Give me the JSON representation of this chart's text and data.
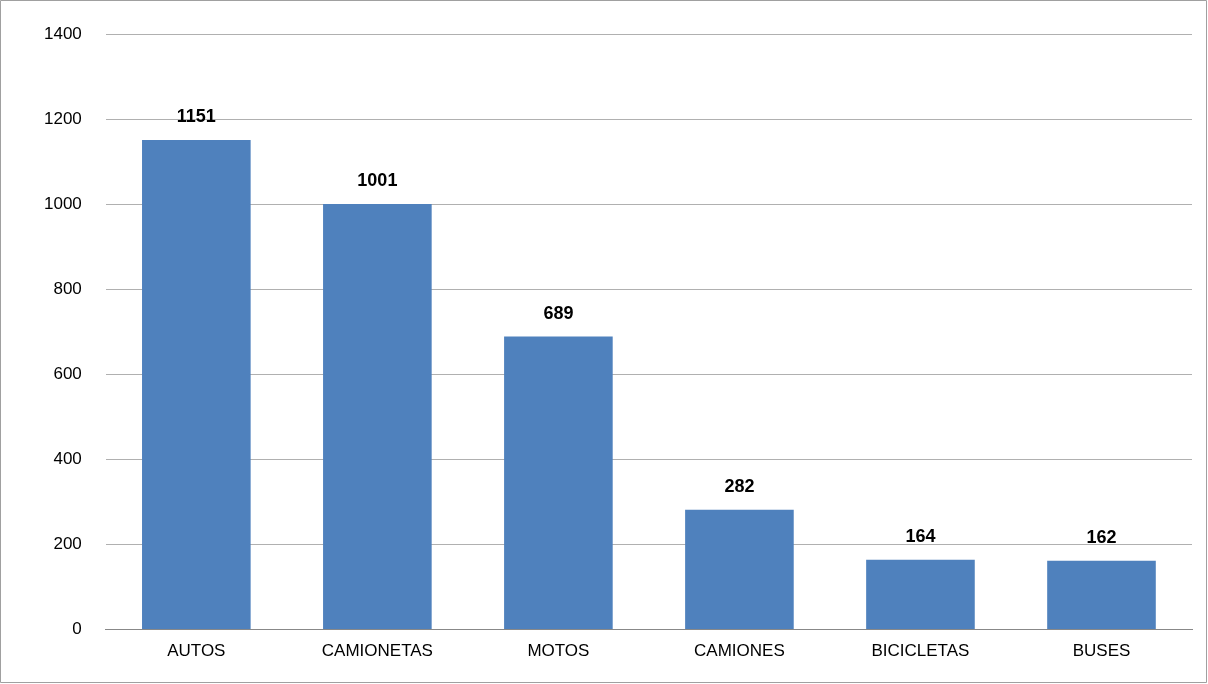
{
  "chart_data": {
    "type": "bar",
    "categories": [
      "AUTOS",
      "CAMIONETAS",
      "MOTOS",
      "CAMIONES",
      "BICICLETAS",
      "BUSES"
    ],
    "values": [
      1151,
      1001,
      689,
      282,
      164,
      162
    ],
    "color": "#4f81bd",
    "ylim": [
      0,
      1400
    ],
    "yticks": [
      0,
      200,
      400,
      600,
      800,
      1000,
      1200,
      1400
    ],
    "grid": "y",
    "legend": false,
    "data_labels": true
  }
}
